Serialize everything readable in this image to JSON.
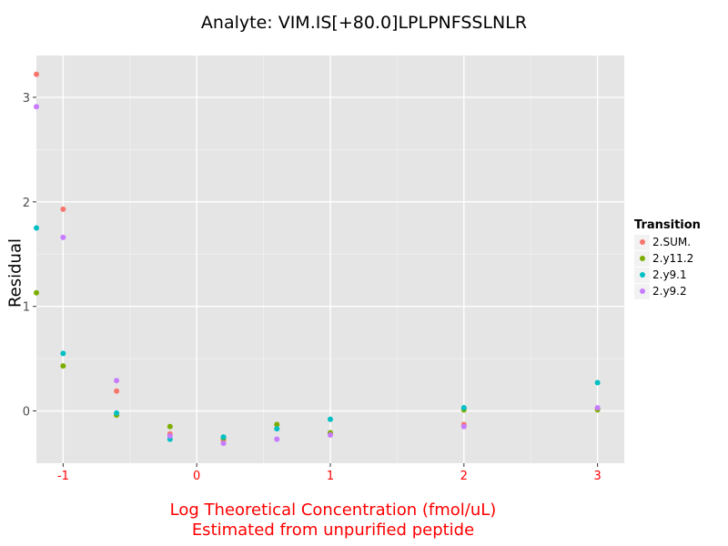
{
  "chart_data": {
    "type": "scatter",
    "title": "Analyte: VIM.IS[+80.0]LPLPNFSSLNLR",
    "xlabel": [
      "Log Theoretical Concentration (fmol/uL)",
      "Estimated from unpurified peptide"
    ],
    "ylabel": "Residual",
    "xlim": [
      -1.2,
      3.2
    ],
    "ylim": [
      -0.5,
      3.4
    ],
    "xticks": [
      -1,
      0,
      1,
      2,
      3
    ],
    "xtick_labels": [
      "-1",
      "0",
      "1",
      "2",
      "3"
    ],
    "yticks": [
      0,
      1,
      2,
      3
    ],
    "ytick_labels": [
      "0",
      "1",
      "2",
      "3"
    ],
    "xtick_color": "#ff0000",
    "ytick_color": "#4d4d4d",
    "grid": true,
    "legend_position": "right",
    "legend_title": "Transition",
    "series": [
      {
        "name": "2.SUM.",
        "color": "#F8766D",
        "points": [
          [
            -1.2,
            3.22
          ],
          [
            -1.0,
            1.93
          ],
          [
            -0.6,
            0.19
          ],
          [
            -0.2,
            -0.22
          ],
          [
            0.2,
            -0.28
          ],
          [
            0.6,
            -0.13
          ],
          [
            1.0,
            -0.21
          ],
          [
            2.0,
            -0.13
          ],
          [
            3.0,
            0.02
          ]
        ]
      },
      {
        "name": "2.y11.2",
        "color": "#7CAE00",
        "points": [
          [
            -1.2,
            1.13
          ],
          [
            -1.0,
            0.43
          ],
          [
            -0.6,
            -0.04
          ],
          [
            -0.2,
            -0.15
          ],
          [
            0.2,
            -0.26
          ],
          [
            0.6,
            -0.13
          ],
          [
            1.0,
            -0.21
          ],
          [
            2.0,
            0.01
          ],
          [
            3.0,
            0.01
          ]
        ]
      },
      {
        "name": "2.y9.1",
        "color": "#00BFC4",
        "points": [
          [
            -1.2,
            1.75
          ],
          [
            -1.0,
            0.55
          ],
          [
            -0.6,
            -0.02
          ],
          [
            -0.2,
            -0.27
          ],
          [
            0.2,
            -0.25
          ],
          [
            0.6,
            -0.17
          ],
          [
            1.0,
            -0.08
          ],
          [
            2.0,
            0.03
          ],
          [
            3.0,
            0.27
          ]
        ]
      },
      {
        "name": "2.y9.2",
        "color": "#C77CFF",
        "points": [
          [
            -1.2,
            2.91
          ],
          [
            -1.0,
            1.66
          ],
          [
            -0.6,
            0.29
          ],
          [
            -0.2,
            -0.24
          ],
          [
            0.2,
            -0.31
          ],
          [
            0.6,
            -0.27
          ],
          [
            1.0,
            -0.23
          ],
          [
            2.0,
            -0.15
          ],
          [
            3.0,
            0.03
          ]
        ]
      }
    ]
  }
}
